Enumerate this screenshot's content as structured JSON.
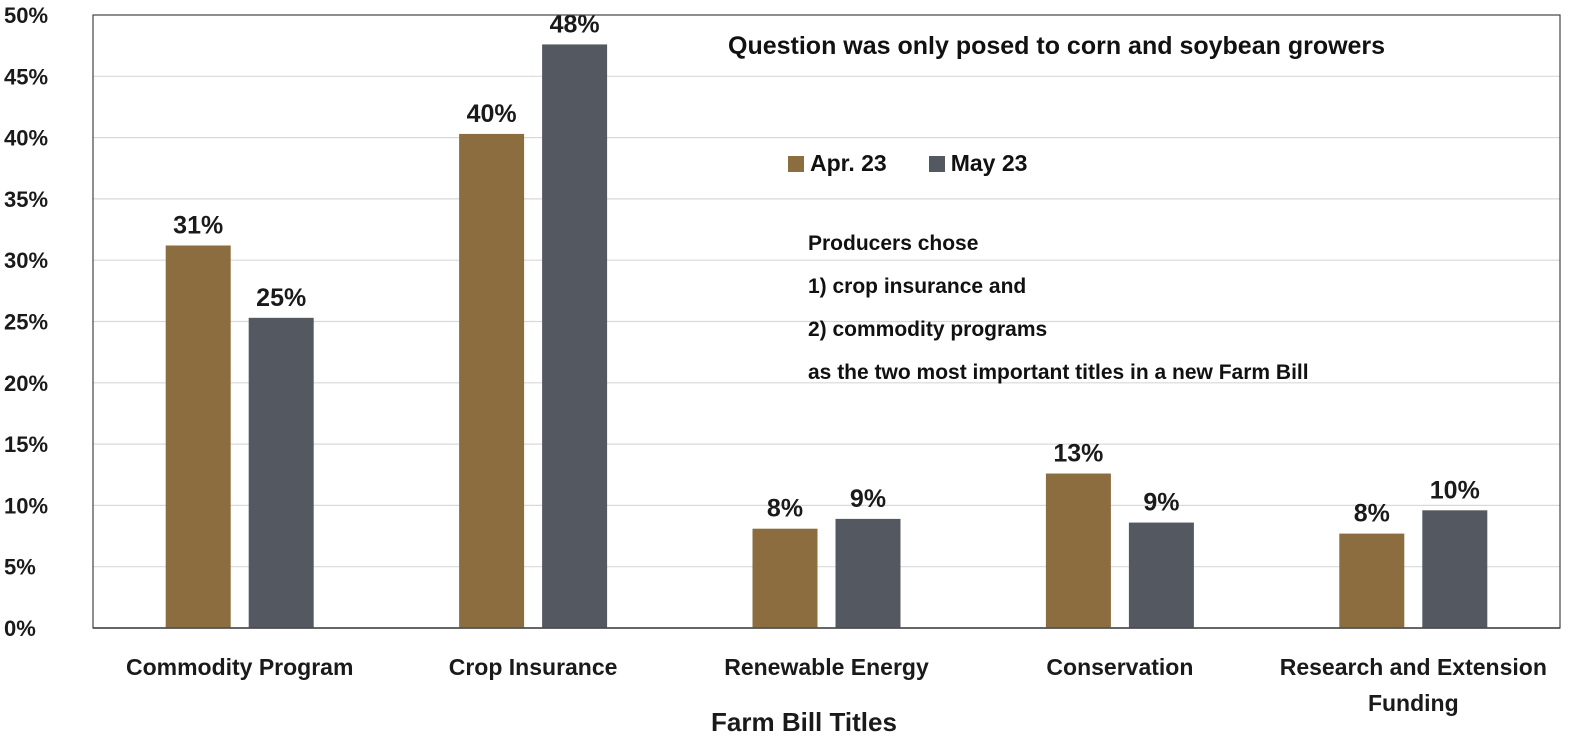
{
  "chart_data": {
    "type": "bar",
    "title": "",
    "xlabel": "Farm Bill Titles",
    "ylabel": "",
    "ylim": [
      0,
      50
    ],
    "y_ticks": [
      "0%",
      "5%",
      "10%",
      "15%",
      "20%",
      "25%",
      "30%",
      "35%",
      "40%",
      "45%",
      "50%"
    ],
    "grid": true,
    "legend_position": "top-right",
    "categories": [
      [
        "Commodity Program"
      ],
      [
        "Crop Insurance"
      ],
      [
        "Renewable Energy"
      ],
      [
        "Conservation"
      ],
      [
        "Research and Extension",
        "Funding"
      ]
    ],
    "series": [
      {
        "name": "Apr. 23",
        "color": "#8C6D3F",
        "values": [
          31.2,
          40.3,
          8.1,
          12.6,
          7.7
        ],
        "labels": [
          "31%",
          "40%",
          "8%",
          "13%",
          "8%"
        ]
      },
      {
        "name": "May 23",
        "color": "#545961",
        "values": [
          25.3,
          47.6,
          8.9,
          8.6,
          9.6
        ],
        "labels": [
          "25%",
          "48%",
          "9%",
          "9%",
          "10%"
        ]
      }
    ],
    "annotations": {
      "headline": "Question was only posed to corn and soybean growers",
      "note_lines": [
        "Producers chose",
        "1) crop insurance and",
        "2) commodity programs",
        "as the two most important titles in a new Farm Bill"
      ]
    }
  }
}
